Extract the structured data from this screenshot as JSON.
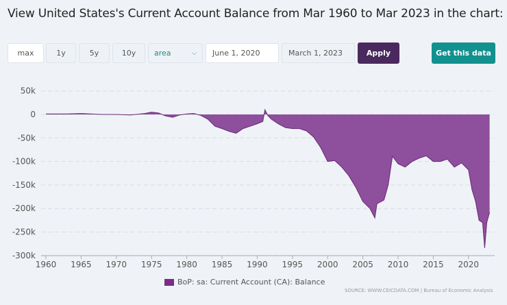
{
  "title": "View United States's Current Account Balance from Mar 1960 to Mar 2023 in the chart:",
  "controls": {
    "max": "max",
    "y1": "1y",
    "y5": "5y",
    "y10": "10y",
    "chart_type": "area",
    "start_date": "June 1, 2020",
    "end_date": "March 1, 2023",
    "apply": "Apply",
    "get_data": "Get this data"
  },
  "colors": {
    "area": "#8e4f9c",
    "line": "#6a2a78",
    "apply": "#4a2a5e",
    "get_data": "#12918f"
  },
  "chart_data": {
    "type": "area",
    "title": "",
    "xlabel": "",
    "ylabel": "",
    "xlim": [
      1960,
      2023.2
    ],
    "ylim": [
      -300000,
      50000
    ],
    "grid": true,
    "legend": "bottom",
    "x_ticks": [
      1960,
      1965,
      1970,
      1975,
      1980,
      1985,
      1990,
      1995,
      2000,
      2005,
      2010,
      2015,
      2020
    ],
    "y_ticks": [
      {
        "v": 50000,
        "l": "50k"
      },
      {
        "v": 0,
        "l": "0"
      },
      {
        "v": -50000,
        "l": "-50k"
      },
      {
        "v": -100000,
        "l": "-100k"
      },
      {
        "v": -150000,
        "l": "-150k"
      },
      {
        "v": -200000,
        "l": "-200k"
      },
      {
        "v": -250000,
        "l": "-250k"
      },
      {
        "v": -300000,
        "l": "-300k"
      }
    ],
    "series": [
      {
        "name": "BoP: sa: Current Account (CA): Balance",
        "x": [
          1960,
          1963,
          1965,
          1968,
          1970,
          1972,
          1974,
          1975,
          1976,
          1977,
          1978,
          1979,
          1980,
          1981,
          1982,
          1983,
          1984,
          1985,
          1986,
          1987,
          1988,
          1989,
          1990,
          1990.8,
          1991.1,
          1991.5,
          1992,
          1993,
          1994,
          1995,
          1996,
          1997,
          1998,
          1999,
          2000,
          2001,
          2002,
          2003,
          2004,
          2005,
          2006,
          2006.7,
          2007,
          2008,
          2008.6,
          2009.2,
          2010,
          2011,
          2012,
          2013,
          2014,
          2015,
          2016,
          2017,
          2018,
          2019,
          2020,
          2020.5,
          2021,
          2021.5,
          2022,
          2022.3,
          2022.6,
          2023
        ],
        "y": [
          1000,
          1000,
          2000,
          0,
          0,
          -1000,
          2000,
          5000,
          3000,
          -3000,
          -6000,
          -1000,
          1000,
          2000,
          -2000,
          -10000,
          -25000,
          -30000,
          -36000,
          -40000,
          -30000,
          -25000,
          -20000,
          -15000,
          10000,
          -2000,
          -10000,
          -20000,
          -28000,
          -30000,
          -30000,
          -35000,
          -48000,
          -70000,
          -100000,
          -98000,
          -112000,
          -130000,
          -155000,
          -185000,
          -200000,
          -220000,
          -190000,
          -182000,
          -150000,
          -89000,
          -105000,
          -112000,
          -100000,
          -93000,
          -88000,
          -100000,
          -100000,
          -95000,
          -112000,
          -103000,
          -118000,
          -160000,
          -185000,
          -225000,
          -230000,
          -284000,
          -230000,
          -208000
        ]
      }
    ],
    "source": "SOURCE: WWW.CEICDATA.COM | Bureau of Economic Analysis"
  }
}
